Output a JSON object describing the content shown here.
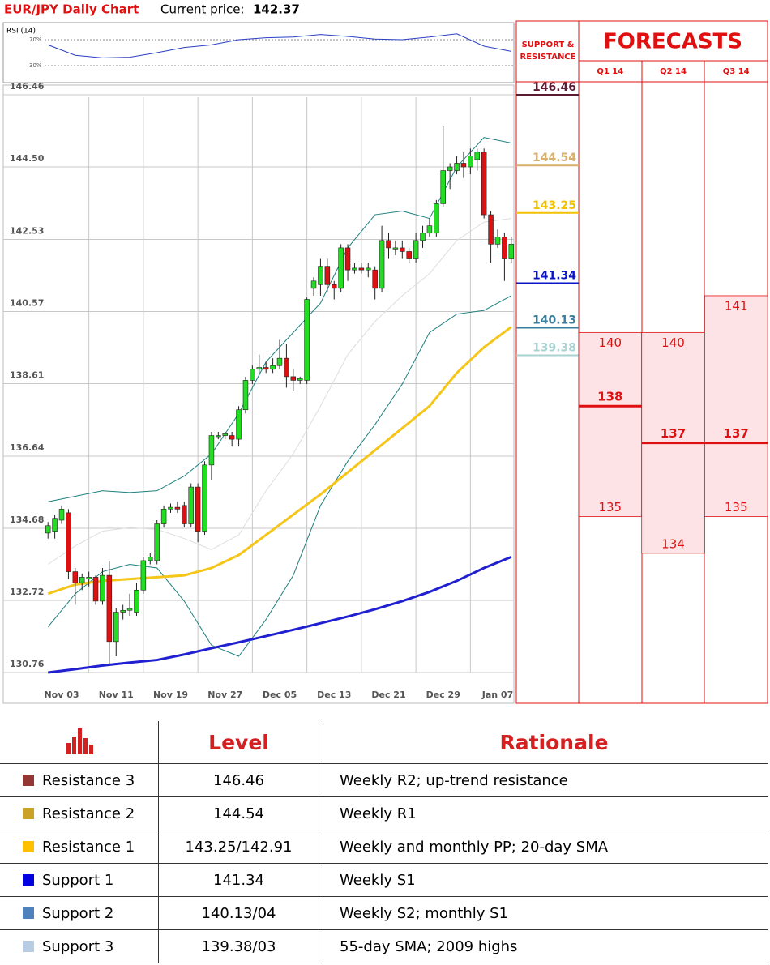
{
  "header": {
    "title": "EUR/JPY Daily Chart",
    "price_label": "Current price:",
    "price": "142.37"
  },
  "chart_data": [
    {
      "type": "line",
      "title": "RSI (14)",
      "color": "#2b3fc4",
      "x": [
        0,
        4,
        8,
        12,
        16,
        20,
        24,
        28,
        32,
        36,
        40,
        44,
        48,
        52,
        56,
        60,
        64,
        68
      ],
      "values": [
        62,
        46,
        42,
        43,
        50,
        58,
        62,
        70,
        73,
        74,
        78,
        75,
        71,
        70,
        74,
        79,
        60,
        52
      ],
      "ylim": [
        10,
        90
      ],
      "yticks": [
        {
          "value": 70,
          "label": "70%"
        },
        {
          "value": 30,
          "label": "30%"
        }
      ]
    },
    {
      "type": "candlestick",
      "up_color": "#22dd22",
      "down_color": "#dd1111",
      "grid": true,
      "categories": [
        null,
        null,
        "Nov 03",
        null,
        null,
        null,
        null,
        null,
        null,
        null,
        "Nov 11",
        null,
        null,
        null,
        null,
        null,
        null,
        null,
        "Nov 19",
        null,
        null,
        null,
        null,
        null,
        null,
        null,
        "Nov 27",
        null,
        null,
        null,
        null,
        null,
        null,
        null,
        "Dec 05",
        null,
        null,
        null,
        null,
        null,
        null,
        null,
        "Dec 13",
        null,
        null,
        null,
        null,
        null,
        null,
        null,
        "Dec 21",
        null,
        null,
        null,
        null,
        null,
        null,
        null,
        "Dec 29",
        null,
        null,
        null,
        null,
        null,
        null,
        null,
        "Jan 07",
        null,
        null
      ],
      "open": [
        134.55,
        134.6,
        134.9,
        135.1,
        133.5,
        133.2,
        133.3,
        133.35,
        132.7,
        133.4,
        131.6,
        132.4,
        132.45,
        132.4,
        133.0,
        133.8,
        133.8,
        134.8,
        135.2,
        135.25,
        135.3,
        134.8,
        135.8,
        134.6,
        136.4,
        137.2,
        137.2,
        137.2,
        137.1,
        137.9,
        138.7,
        139.0,
        139.05,
        139.0,
        139.1,
        139.3,
        138.8,
        138.7,
        138.7,
        141.2,
        141.3,
        141.8,
        141.3,
        141.2,
        142.3,
        141.7,
        141.75,
        141.7,
        141.7,
        141.2,
        142.5,
        142.3,
        142.3,
        142.2,
        142.0,
        142.5,
        142.7,
        142.7,
        143.5,
        144.4,
        144.4,
        144.6,
        144.5,
        144.7,
        144.9,
        143.2,
        142.4,
        142.6,
        142.0
      ],
      "high": [
        134.85,
        135.05,
        135.3,
        135.2,
        133.6,
        133.45,
        133.5,
        133.4,
        133.6,
        133.8,
        132.5,
        132.6,
        132.9,
        133.2,
        133.9,
        134.0,
        134.9,
        135.3,
        135.35,
        135.4,
        135.4,
        135.9,
        135.9,
        136.5,
        137.3,
        137.3,
        137.3,
        137.3,
        138.0,
        138.8,
        139.1,
        139.4,
        139.2,
        139.3,
        139.8,
        139.7,
        139.0,
        138.8,
        140.95,
        141.5,
        142.0,
        142.0,
        141.4,
        142.4,
        142.4,
        141.9,
        141.9,
        141.9,
        141.8,
        142.9,
        142.7,
        142.5,
        142.5,
        142.3,
        142.7,
        142.9,
        143.1,
        143.6,
        145.6,
        144.6,
        144.8,
        144.9,
        145.0,
        145.0,
        145.0,
        143.3,
        142.8,
        142.7,
        142.6
      ],
      "low": [
        134.4,
        134.4,
        134.8,
        133.3,
        132.6,
        133.0,
        133.1,
        132.6,
        132.6,
        131.0,
        131.2,
        132.2,
        132.3,
        132.3,
        132.9,
        133.7,
        133.7,
        134.7,
        135.1,
        135.1,
        134.7,
        134.7,
        134.3,
        134.5,
        136.0,
        137.1,
        137.1,
        136.9,
        136.9,
        137.8,
        138.6,
        138.9,
        138.9,
        138.9,
        139.0,
        138.5,
        138.4,
        138.6,
        138.6,
        141.0,
        141.0,
        141.1,
        140.9,
        141.1,
        141.4,
        141.6,
        141.6,
        141.5,
        140.9,
        141.1,
        142.0,
        142.1,
        142.0,
        141.9,
        141.9,
        142.3,
        142.6,
        142.6,
        143.4,
        143.9,
        144.3,
        144.2,
        144.3,
        144.4,
        143.1,
        141.9,
        142.3,
        141.4,
        141.9
      ],
      "close": [
        134.75,
        134.95,
        135.2,
        133.5,
        133.2,
        133.35,
        133.35,
        132.7,
        133.4,
        131.6,
        132.4,
        132.45,
        132.5,
        133.0,
        133.8,
        133.9,
        134.8,
        135.2,
        135.25,
        135.2,
        134.8,
        135.8,
        134.6,
        136.4,
        137.2,
        137.2,
        137.25,
        137.1,
        137.9,
        138.7,
        139.0,
        139.05,
        139.0,
        139.1,
        139.3,
        138.8,
        138.7,
        138.75,
        140.9,
        141.4,
        141.8,
        141.3,
        141.2,
        142.3,
        141.7,
        141.75,
        141.7,
        141.75,
        141.2,
        142.5,
        142.3,
        142.3,
        142.2,
        142.0,
        142.5,
        142.7,
        142.9,
        143.5,
        144.4,
        144.5,
        144.6,
        144.5,
        144.8,
        144.9,
        143.2,
        142.4,
        142.6,
        142.0,
        142.4
      ],
      "lines": [
        {
          "color": "#dddddd",
          "x": [
            0,
            4,
            8,
            12,
            16,
            20,
            24,
            28,
            32,
            36,
            40,
            44,
            48,
            52,
            56,
            60,
            64,
            68
          ],
          "values": [
            133.7,
            134.2,
            134.6,
            134.7,
            134.65,
            134.4,
            134.1,
            134.5,
            135.7,
            136.7,
            138.0,
            139.4,
            140.3,
            141.0,
            141.6,
            142.5,
            143.0,
            143.1
          ]
        },
        {
          "color": "#1f7f7f",
          "x": [
            0,
            4,
            8,
            12,
            16,
            20,
            24,
            28,
            32,
            36,
            40,
            44,
            48,
            52,
            56,
            60,
            64,
            68
          ],
          "values": [
            135.4,
            135.55,
            135.7,
            135.65,
            135.7,
            136.1,
            136.7,
            137.8,
            139.2,
            140.0,
            140.8,
            142.3,
            143.2,
            143.3,
            143.1,
            144.5,
            145.3,
            145.15
          ]
        },
        {
          "color": "#1f7f7f",
          "x": [
            0,
            4,
            8,
            12,
            16,
            20,
            24,
            28,
            32,
            36,
            40,
            44,
            48,
            52,
            56,
            60,
            64,
            68
          ],
          "values": [
            132.0,
            132.9,
            133.5,
            133.7,
            133.6,
            132.7,
            131.5,
            131.2,
            132.2,
            133.4,
            135.3,
            136.5,
            137.5,
            138.6,
            140.0,
            140.5,
            140.6,
            141.0
          ]
        },
        {
          "color": "#f5c518",
          "x": [
            0,
            4,
            8,
            12,
            16,
            20,
            24,
            28,
            32,
            36,
            40,
            44,
            48,
            52,
            56,
            60,
            64,
            68
          ],
          "values": [
            132.9,
            133.15,
            133.25,
            133.3,
            133.35,
            133.4,
            133.6,
            133.95,
            134.5,
            135.05,
            135.6,
            136.2,
            136.8,
            137.4,
            138.0,
            138.9,
            139.6,
            140.15
          ]
        },
        {
          "color": "#2020d0",
          "x": [
            0,
            4,
            8,
            12,
            16,
            20,
            24,
            28,
            32,
            36,
            40,
            44,
            48,
            52,
            56,
            60,
            64,
            68
          ],
          "values": [
            130.76,
            130.85,
            130.95,
            131.03,
            131.1,
            131.25,
            131.42,
            131.58,
            131.75,
            131.92,
            132.1,
            132.28,
            132.48,
            132.7,
            132.95,
            133.25,
            133.6,
            133.9
          ]
        }
      ],
      "ylim": [
        130.76,
        146.46
      ],
      "yticks": [
        146.46,
        {
          "value": 144.5,
          "label": "144.50"
        },
        142.53,
        140.57,
        138.61,
        136.64,
        134.68,
        132.72,
        130.76
      ]
    }
  ],
  "support_resistance": {
    "title": "SUPPORT & RESISTANCE",
    "levels": [
      {
        "value": 146.46,
        "color": "#5c1a33"
      },
      {
        "value": 144.54,
        "color": "#d8b06a"
      },
      {
        "value": 143.25,
        "color": "#f2c100"
      },
      {
        "value": 141.34,
        "color": "#0a14c8"
      },
      {
        "value": 140.13,
        "color": "#3a7f9f"
      },
      {
        "value": 139.38,
        "color": "#a9d2d2"
      }
    ]
  },
  "forecasts": {
    "title": "FORECASTS",
    "quarters": [
      {
        "name": "Q1 14",
        "high": 140,
        "mid": 138,
        "low": 135
      },
      {
        "name": "Q2 14",
        "high": 140,
        "mid": 137,
        "low": 134
      },
      {
        "name": "Q3 14",
        "high": 141,
        "mid": 137,
        "low": 135
      }
    ]
  },
  "table": {
    "header": [
      "Level",
      "Rationale"
    ],
    "rows": [
      {
        "name": "Resistance 3",
        "color": "#943634",
        "level": "146.46",
        "rationale": "Weekly R2; up-trend resistance"
      },
      {
        "name": "Resistance 2",
        "color": "#c9a227",
        "level": "144.54",
        "rationale": "Weekly R1"
      },
      {
        "name": "Resistance 1",
        "color": "#ffc000",
        "level": "143.25/142.91",
        "rationale": "Weekly and monthly PP; 20-day SMA"
      },
      {
        "name": "Support 1",
        "color": "#0000e0",
        "level": "141.34",
        "rationale": "Weekly S1"
      },
      {
        "name": "Support 2",
        "color": "#4f81bd",
        "level": "140.13/04",
        "rationale": "Weekly S2; monthly S1"
      },
      {
        "name": "Support 3",
        "color": "#b8cce4",
        "level": "139.38/03",
        "rationale": "55-day SMA; 2009 highs"
      }
    ]
  }
}
